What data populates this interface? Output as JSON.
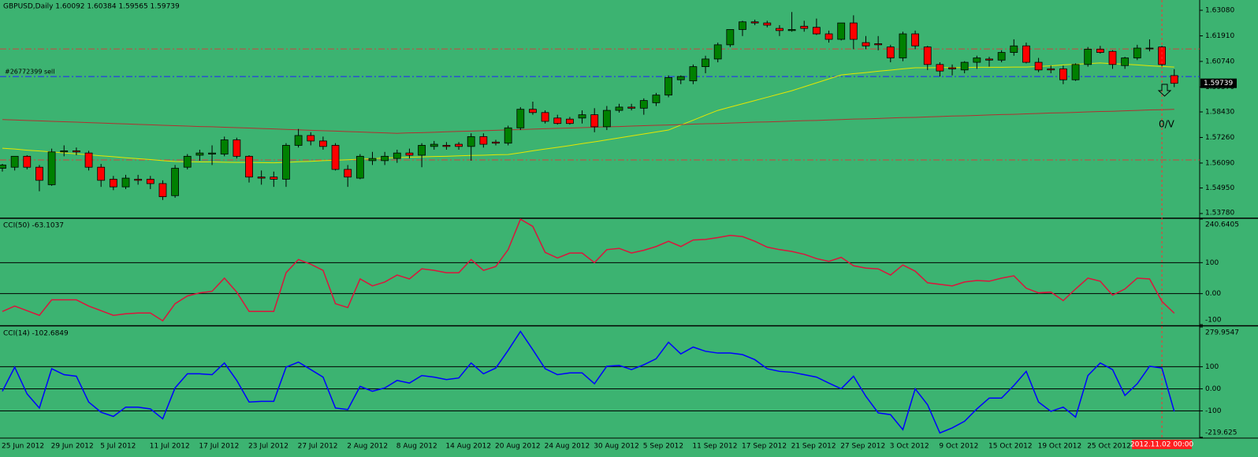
{
  "chart_data": [
    {
      "type": "candlestick",
      "title": "GBPUSD,Daily  1.60092 1.60384 1.59565 1.59739",
      "categories": [
        "25 Jun 2012",
        null,
        null,
        null,
        "29 Jun 2012",
        null,
        null,
        null,
        "5 Jul 2012",
        null,
        null,
        null,
        "11 Jul 2012",
        null,
        null,
        null,
        "17 Jul 2012",
        null,
        null,
        null,
        "23 Jul 2012",
        null,
        null,
        null,
        "27 Jul 2012",
        null,
        null,
        null,
        "2 Aug 2012",
        null,
        null,
        null,
        "8 Aug 2012",
        null,
        null,
        null,
        "14 Aug 2012",
        null,
        null,
        null,
        "20 Aug 2012",
        null,
        null,
        null,
        "24 Aug 2012",
        null,
        null,
        null,
        "30 Aug 2012",
        null,
        null,
        null,
        "5 Sep 2012",
        null,
        null,
        null,
        "11 Sep 2012",
        null,
        null,
        null,
        "17 Sep 2012",
        null,
        null,
        null,
        "21 Sep 2012",
        null,
        null,
        null,
        "27 Sep 2012",
        null,
        null,
        null,
        "3 Oct 2012",
        null,
        null,
        null,
        "9 Oct 2012",
        null,
        null,
        null,
        "15 Oct 2012",
        null,
        null,
        null,
        "19 Oct 2012",
        null,
        null,
        null,
        "25 Oct 2012",
        null,
        null,
        null,
        null,
        null,
        null,
        null
      ],
      "open": [
        1.5585,
        1.559,
        1.564,
        1.559,
        1.551,
        1.566,
        1.5665,
        1.5655,
        1.559,
        1.5535,
        1.55,
        1.5535,
        1.5535,
        1.5515,
        1.546,
        1.559,
        1.5645,
        1.565,
        1.565,
        1.5715,
        1.564,
        1.5545,
        1.5545,
        1.5535,
        1.569,
        1.5735,
        1.571,
        1.569,
        1.558,
        1.554,
        1.562,
        1.562,
        1.563,
        1.5655,
        1.5645,
        1.5685,
        1.569,
        1.5695,
        1.5685,
        1.573,
        1.5705,
        1.57,
        1.577,
        1.5855,
        1.584,
        1.5815,
        1.581,
        1.5815,
        1.583,
        1.5775,
        1.585,
        1.5865,
        1.586,
        1.5885,
        1.592,
        1.599,
        1.5985,
        1.605,
        1.6085,
        1.615,
        1.622,
        1.6255,
        1.625,
        1.6225,
        1.6215,
        1.6235,
        1.623,
        1.62,
        1.6175,
        1.625,
        1.616,
        1.6155,
        1.614,
        1.609,
        1.62,
        1.614,
        1.606,
        1.6045,
        1.6035,
        1.607,
        1.6085,
        1.608,
        1.6115,
        1.6145,
        1.607,
        1.604,
        1.604,
        1.599,
        1.606,
        1.613,
        1.612,
        1.6055,
        1.609,
        1.6135,
        1.614,
        1.60092
      ],
      "high": [
        1.5605,
        1.564,
        1.5645,
        1.56,
        1.5675,
        1.569,
        1.568,
        1.5665,
        1.5605,
        1.555,
        1.5555,
        1.5555,
        1.555,
        1.553,
        1.56,
        1.565,
        1.567,
        1.569,
        1.573,
        1.5725,
        1.5645,
        1.5575,
        1.557,
        1.57,
        1.5765,
        1.575,
        1.573,
        1.57,
        1.56,
        1.565,
        1.566,
        1.566,
        1.567,
        1.5675,
        1.57,
        1.571,
        1.5705,
        1.5705,
        1.5745,
        1.5745,
        1.5715,
        1.578,
        1.5865,
        1.589,
        1.585,
        1.583,
        1.582,
        1.585,
        1.586,
        1.587,
        1.588,
        1.588,
        1.5905,
        1.593,
        1.601,
        1.601,
        1.606,
        1.61,
        1.616,
        1.622,
        1.626,
        1.6265,
        1.626,
        1.624,
        1.63,
        1.626,
        1.627,
        1.6215,
        1.625,
        1.6285,
        1.619,
        1.619,
        1.615,
        1.621,
        1.6215,
        1.6145,
        1.607,
        1.606,
        1.6075,
        1.61,
        1.6095,
        1.6125,
        1.6175,
        1.616,
        1.609,
        1.6055,
        1.6055,
        1.6065,
        1.614,
        1.6145,
        1.6125,
        1.6095,
        1.615,
        1.6175,
        1.6145,
        1.60384
      ],
      "low": [
        1.557,
        1.5575,
        1.558,
        1.548,
        1.5505,
        1.564,
        1.5645,
        1.5575,
        1.55,
        1.5485,
        1.549,
        1.551,
        1.549,
        1.544,
        1.545,
        1.558,
        1.562,
        1.56,
        1.564,
        1.563,
        1.552,
        1.551,
        1.55,
        1.55,
        1.568,
        1.569,
        1.567,
        1.5575,
        1.55,
        1.5535,
        1.56,
        1.56,
        1.561,
        1.563,
        1.559,
        1.567,
        1.567,
        1.567,
        1.562,
        1.568,
        1.569,
        1.569,
        1.576,
        1.583,
        1.579,
        1.5785,
        1.5785,
        1.579,
        1.575,
        1.576,
        1.584,
        1.585,
        1.583,
        1.587,
        1.591,
        1.597,
        1.597,
        1.602,
        1.607,
        1.614,
        1.619,
        1.624,
        1.623,
        1.619,
        1.621,
        1.621,
        1.6195,
        1.616,
        1.617,
        1.613,
        1.613,
        1.6125,
        1.607,
        1.6075,
        1.613,
        1.6035,
        1.6005,
        1.601,
        1.602,
        1.604,
        1.605,
        1.607,
        1.61,
        1.6065,
        1.6025,
        1.602,
        1.597,
        1.5985,
        1.605,
        1.611,
        1.604,
        1.604,
        1.608,
        1.612,
        1.605,
        1.59565
      ],
      "close": [
        1.56,
        1.564,
        1.559,
        1.553,
        1.566,
        1.5665,
        1.566,
        1.559,
        1.553,
        1.55,
        1.554,
        1.553,
        1.5515,
        1.5455,
        1.5585,
        1.564,
        1.5655,
        1.5655,
        1.5715,
        1.564,
        1.5545,
        1.554,
        1.5535,
        1.569,
        1.5735,
        1.571,
        1.5685,
        1.558,
        1.5545,
        1.564,
        1.563,
        1.564,
        1.5655,
        1.5645,
        1.569,
        1.5695,
        1.5685,
        1.5685,
        1.573,
        1.5695,
        1.57,
        1.577,
        1.5855,
        1.584,
        1.58,
        1.579,
        1.579,
        1.583,
        1.5775,
        1.585,
        1.5865,
        1.586,
        1.5895,
        1.592,
        1.6,
        1.6005,
        1.605,
        1.6085,
        1.615,
        1.622,
        1.6255,
        1.625,
        1.624,
        1.6215,
        1.622,
        1.6225,
        1.62,
        1.6175,
        1.625,
        1.6175,
        1.6145,
        1.615,
        1.609,
        1.62,
        1.6145,
        1.606,
        1.603,
        1.604,
        1.607,
        1.609,
        1.608,
        1.6115,
        1.6145,
        1.607,
        1.6035,
        1.6035,
        1.599,
        1.606,
        1.613,
        1.6115,
        1.606,
        1.609,
        1.6135,
        1.6135,
        1.606,
        1.59739
      ],
      "up_color": "#008000",
      "down_color": "#ff0000",
      "lines": [
        {
          "color": "#e6e600",
          "values": [
            1.5677,
            1.5673,
            1.5668,
            1.5664,
            1.566,
            1.5655,
            1.5651,
            1.5647,
            1.5642,
            1.5638,
            1.5633,
            1.5629,
            1.5625,
            1.562,
            1.5616,
            1.5615,
            1.5614,
            1.5614,
            1.5613,
            1.5612,
            1.5612,
            1.5611,
            1.561,
            1.5612,
            1.5615,
            1.5617,
            1.562,
            1.5622,
            1.5624,
            1.5627,
            1.5629,
            1.5632,
            1.5634,
            1.5636,
            1.5637,
            1.5639,
            1.564,
            1.5642,
            1.5644,
            1.5645,
            1.5647,
            1.5648,
            1.5656,
            1.5665,
            1.5673,
            1.5681,
            1.5689,
            1.5698,
            1.5706,
            1.5715,
            1.5724,
            1.5733,
            1.5742,
            1.5751,
            1.576,
            1.5783,
            1.5805,
            1.5828,
            1.585,
            1.5865,
            1.588,
            1.5895,
            1.591,
            1.5925,
            1.594,
            1.5958,
            1.5976,
            1.5994,
            1.6012,
            1.6018,
            1.6023,
            1.6029,
            1.6034,
            1.604,
            1.6045,
            1.6045,
            1.6046,
            1.6046,
            1.6046,
            1.6047,
            1.6047,
            1.6047,
            1.6048,
            1.6048,
            1.6051,
            1.6054,
            1.6058,
            1.6061,
            1.6064,
            1.6067,
            1.6064,
            1.6061,
            1.6058,
            1.6054,
            1.6051,
            1.6048
          ]
        },
        {
          "color": "#b03030",
          "values": [
            1.5808,
            1.5806,
            1.5804,
            1.5802,
            1.58,
            1.5798,
            1.5796,
            1.5794,
            1.5792,
            1.579,
            1.5788,
            1.5786,
            1.5784,
            1.5782,
            1.578,
            1.5778,
            1.5776,
            1.5775,
            1.5773,
            1.5771,
            1.5769,
            1.5767,
            1.5765,
            1.5763,
            1.5761,
            1.5759,
            1.5757,
            1.5755,
            1.5753,
            1.5751,
            1.5749,
            1.5747,
            1.5745,
            1.5747,
            1.5748,
            1.575,
            1.5752,
            1.5754,
            1.5755,
            1.5757,
            1.5759,
            1.5761,
            1.5762,
            1.5764,
            1.5766,
            1.5768,
            1.5769,
            1.5771,
            1.5773,
            1.5775,
            1.5776,
            1.5778,
            1.578,
            1.5782,
            1.5783,
            1.5785,
            1.5787,
            1.5789,
            1.579,
            1.5792,
            1.5794,
            1.5796,
            1.5797,
            1.5799,
            1.5801,
            1.5803,
            1.5804,
            1.5806,
            1.5808,
            1.581,
            1.5811,
            1.5813,
            1.5815,
            1.5817,
            1.5818,
            1.582,
            1.5822,
            1.5824,
            1.5825,
            1.5827,
            1.5829,
            1.5831,
            1.5832,
            1.5834,
            1.5836,
            1.5838,
            1.5839,
            1.5841,
            1.5843,
            1.5845,
            1.5846,
            1.5848,
            1.585,
            1.5852,
            1.5853,
            1.5855
          ]
        }
      ],
      "levels": [
        {
          "value": 1.6131,
          "color": "#d04040"
        },
        {
          "value": 1.5623,
          "color": "#d04040"
        },
        {
          "value": 1.6005,
          "color": "#2020ff",
          "label": "#26772399 sell"
        }
      ],
      "annotation": "0/V",
      "crosshair_label": "2012.11.02 00:00",
      "ylim": [
        1.536,
        1.6355
      ],
      "yticks": [
        {
          "value": 1.6308,
          "label": "1.63080"
        },
        {
          "value": 1.6191,
          "label": "1.61910"
        },
        {
          "value": 1.6074,
          "label": "1.60740"
        },
        {
          "value": 1.5957,
          "label": "1.59570"
        },
        {
          "value": 1.5843,
          "label": "1.58430"
        },
        {
          "value": 1.5726,
          "label": "1.57260"
        },
        {
          "value": 1.5609,
          "label": "1.56090"
        },
        {
          "value": 1.5495,
          "label": "1.54950"
        },
        {
          "value": 1.5378,
          "label": "1.53780"
        }
      ]
    },
    {
      "type": "line",
      "title": "CCI(50) -63.1037",
      "color": "#dc143c",
      "values": [
        -57.5,
        -40,
        -55,
        -70,
        -20,
        -20,
        -20,
        -40,
        -55,
        -70,
        -65,
        -62.5,
        -62.5,
        -87.5,
        -32.5,
        -7.5,
        2.5,
        7.5,
        50,
        5,
        -57.5,
        -57.5,
        -57.5,
        67.5,
        110,
        95,
        75,
        -32.5,
        -45,
        47.5,
        25,
        37.5,
        60,
        47.5,
        80,
        75,
        67.5,
        67.5,
        110,
        75,
        87.5,
        142,
        240,
        217,
        133,
        115,
        131,
        131,
        100,
        142,
        146,
        131,
        140,
        152,
        169,
        152,
        173,
        175,
        181,
        188,
        184,
        169,
        150,
        142,
        136,
        127,
        113,
        104,
        117,
        90,
        82.5,
        80,
        60,
        92.5,
        72.5,
        35,
        30,
        25,
        37.5,
        42.5,
        40,
        50,
        57.5,
        17.5,
        2.5,
        5,
        -22.5,
        15,
        50,
        40,
        -5,
        15,
        50,
        47.5,
        -25,
        -63.1037
      ],
      "ylim": [
        -100,
        240.6405
      ],
      "yticks": [
        {
          "value": 240.6405,
          "label": "240.6405"
        },
        100,
        {
          "value": 0,
          "label": "0.00"
        },
        -100
      ]
    },
    {
      "type": "line",
      "title": "CCI(14) -102.6849",
      "color": "#0000ff",
      "values": [
        -11,
        98,
        -23,
        -87,
        91,
        64,
        57,
        -60,
        -106,
        -125,
        -83,
        -83,
        -91,
        -136,
        4,
        68,
        68,
        64,
        117,
        38,
        -60,
        -57,
        -57,
        98,
        121,
        87,
        53,
        -87,
        -94,
        11,
        -11,
        4,
        38,
        26,
        60,
        53,
        42,
        49,
        117,
        68,
        94,
        174,
        260,
        177,
        91,
        64,
        72,
        72,
        23,
        102,
        106,
        87,
        109,
        136,
        211,
        158,
        189,
        170,
        162,
        162,
        155,
        132,
        91,
        79,
        75,
        64,
        53,
        26,
        0,
        57,
        -34,
        -109,
        -117,
        -185,
        0,
        -72,
        -200,
        -177,
        -147,
        -91,
        -42,
        -42,
        15,
        79,
        -60,
        -102,
        -83,
        -128,
        60,
        117,
        87,
        -30,
        23,
        102,
        94,
        -102.6849
      ],
      "ylim": [
        -219.625,
        279.9547
      ],
      "yticks": [
        {
          "value": 279.9547,
          "label": "279.9547"
        },
        100,
        {
          "value": 0,
          "label": "0.00"
        },
        -100,
        {
          "value": -219.625,
          "label": "-219.625"
        }
      ]
    }
  ]
}
